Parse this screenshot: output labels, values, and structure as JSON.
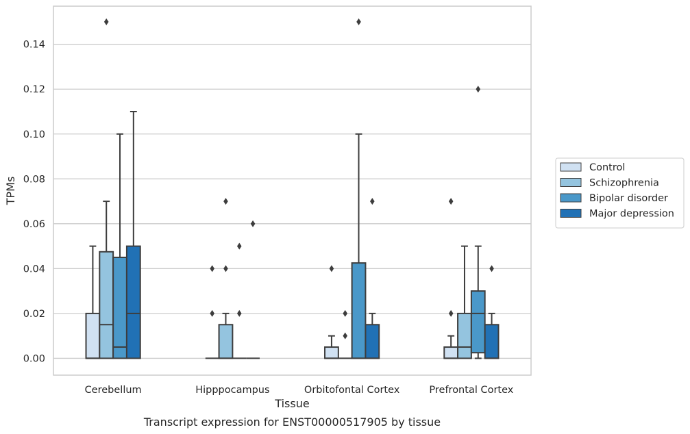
{
  "chart_data": {
    "type": "box",
    "xlabel": "Tissue",
    "ylabel": "TPMs",
    "caption": "Transcript expression for ENST00000517905 by tissue",
    "categories": [
      "Cerebellum",
      "Hipppocampus",
      "Orbitofontal Cortex",
      "Prefrontal Cortex"
    ],
    "ylim": [
      -0.0075,
      0.157
    ],
    "yticks": [
      "0.00",
      "0.02",
      "0.04",
      "0.06",
      "0.08",
      "0.10",
      "0.12",
      "0.14"
    ],
    "ytick_values": [
      0,
      0.02,
      0.04,
      0.06,
      0.08,
      0.1,
      0.12,
      0.14
    ],
    "grid": true,
    "legend_position": "right",
    "series": [
      {
        "name": "Control",
        "color": "#d0e1f2",
        "boxes": [
          {
            "q1": 0,
            "median": 0,
            "q3": 0.02,
            "whislo": 0,
            "whishi": 0.05,
            "fliers": []
          },
          {
            "q1": 0,
            "median": 0,
            "q3": 0,
            "whislo": 0,
            "whishi": 0,
            "fliers": [
              0.02,
              0.04
            ]
          },
          {
            "q1": 0,
            "median": 0,
            "q3": 0.005,
            "whislo": 0,
            "whishi": 0.01,
            "fliers": [
              0.04
            ]
          },
          {
            "q1": 0,
            "median": 0,
            "q3": 0.005,
            "whislo": 0,
            "whishi": 0.01,
            "fliers": [
              0.02,
              0.07
            ]
          }
        ]
      },
      {
        "name": "Schizophrenia",
        "color": "#94c4df",
        "boxes": [
          {
            "q1": 0,
            "median": 0.015,
            "q3": 0.0475,
            "whislo": 0,
            "whishi": 0.07,
            "fliers": [
              0.15
            ]
          },
          {
            "q1": 0,
            "median": 0,
            "q3": 0.015,
            "whislo": 0,
            "whishi": 0.02,
            "fliers": [
              0.04,
              0.07
            ]
          },
          {
            "q1": 0,
            "median": 0,
            "q3": 0,
            "whislo": 0,
            "whishi": 0,
            "fliers": [
              0.01,
              0.02
            ]
          },
          {
            "q1": 0,
            "median": 0.005,
            "q3": 0.02,
            "whislo": 0,
            "whishi": 0.05,
            "fliers": []
          }
        ]
      },
      {
        "name": "Bipolar disorder",
        "color": "#4a98c9",
        "boxes": [
          {
            "q1": 0,
            "median": 0.005,
            "q3": 0.045,
            "whislo": 0,
            "whishi": 0.1,
            "fliers": []
          },
          {
            "q1": 0,
            "median": 0,
            "q3": 0,
            "whislo": 0,
            "whishi": 0,
            "fliers": [
              0.02,
              0.05
            ]
          },
          {
            "q1": 0,
            "median": 0,
            "q3": 0.0425,
            "whislo": 0,
            "whishi": 0.1,
            "fliers": [
              0.15
            ]
          },
          {
            "q1": 0.0025,
            "median": 0.02,
            "q3": 0.03,
            "whislo": 0,
            "whishi": 0.05,
            "fliers": [
              0.12
            ]
          }
        ]
      },
      {
        "name": "Major depression",
        "color": "#2171b5",
        "boxes": [
          {
            "q1": 0,
            "median": 0.02,
            "q3": 0.05,
            "whislo": 0,
            "whishi": 0.11,
            "fliers": []
          },
          {
            "q1": 0,
            "median": 0,
            "q3": 0,
            "whislo": 0,
            "whishi": 0,
            "fliers": [
              0.06
            ]
          },
          {
            "q1": 0,
            "median": 0,
            "q3": 0.015,
            "whislo": 0,
            "whishi": 0.02,
            "fliers": [
              0.07
            ]
          },
          {
            "q1": 0,
            "median": 0,
            "q3": 0.015,
            "whislo": 0,
            "whishi": 0.02,
            "fliers": [
              0.04
            ]
          }
        ]
      }
    ]
  }
}
